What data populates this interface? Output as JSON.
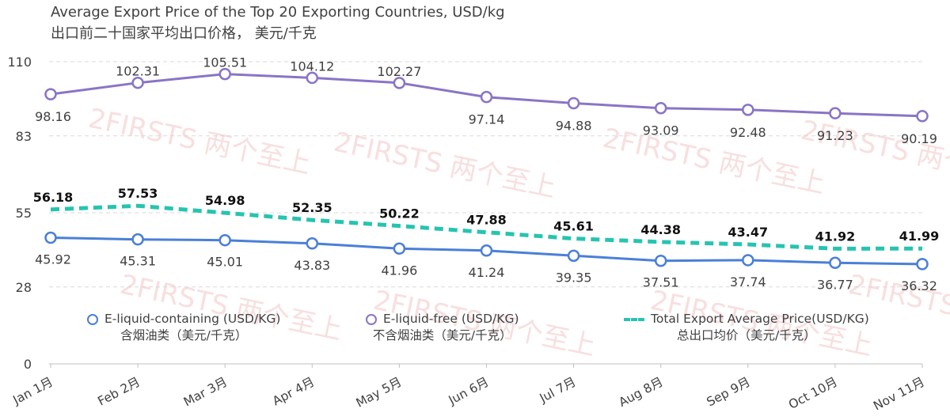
{
  "title": {
    "line1": "Average Export Price of the Top 20 Exporting Countries, USD/kg",
    "line2": "出口前二十国家平均出口价格， 美元/千克"
  },
  "watermark": "2FIRSTS 两个至上",
  "colors": {
    "e_liquid_containing": "#4a7fd9",
    "e_liquid_free": "#8a74c6",
    "total": "#26c4b0",
    "grid": "#d9d9d9",
    "watermark": "#f3c6c6"
  },
  "legend": [
    {
      "label": "E-liquid-containing (USD/KG)",
      "sublabel": "含烟油类（美元/千克）",
      "marker": "circle",
      "color": "#4a7fd9"
    },
    {
      "label": "E-liquid-free (USD/KG)",
      "sublabel": "不含烟油类（美元/千克）",
      "marker": "circle",
      "color": "#8a74c6"
    },
    {
      "label": "Total Export Average Price(USD/KG)",
      "sublabel": "总出口均价（美元/千克）",
      "marker": "dashed-line",
      "color": "#26c4b0"
    }
  ],
  "chart_data": {
    "type": "line",
    "categories": [
      "Jan 1月",
      "Feb 2月",
      "Mar 3月",
      "Apr 4月",
      "May 5月",
      "Jun 6月",
      "Jul 7月",
      "Aug 8月",
      "Sep 9月",
      "Oct 10月",
      "Nov 11月"
    ],
    "y_ticks": [
      0,
      28,
      55,
      83,
      110
    ],
    "ylim": [
      0,
      110
    ],
    "grid": true,
    "legend_position": "bottom",
    "series": [
      {
        "name": "E-liquid-free (USD/KG)",
        "style": "solid-circle",
        "color": "#8a74c6",
        "label_weight": "normal",
        "values": [
          98.16,
          102.31,
          105.51,
          104.12,
          102.27,
          97.14,
          94.88,
          93.09,
          92.48,
          91.23,
          90.19
        ],
        "labels": [
          "98.16",
          "102.31",
          "105.51",
          "104.12",
          "102.27",
          "97.14",
          "94.88",
          "93.09",
          "92.48",
          "91.23",
          "90.19"
        ]
      },
      {
        "name": "Total Export Average Price(USD/KG)",
        "style": "dashed",
        "color": "#26c4b0",
        "label_weight": "bold",
        "values": [
          56.18,
          57.53,
          54.98,
          52.35,
          50.22,
          47.88,
          45.61,
          44.38,
          43.47,
          41.92,
          41.99
        ],
        "labels": [
          "56.18",
          "57.53",
          "54.98",
          "52.35",
          "50.22",
          "47.88",
          "45.61",
          "44.38",
          "43.47",
          "41.92",
          "41.99"
        ]
      },
      {
        "name": "E-liquid-containing (USD/KG)",
        "style": "solid-circle",
        "color": "#4a7fd9",
        "label_weight": "normal",
        "values": [
          45.92,
          45.31,
          45.01,
          43.83,
          41.96,
          41.24,
          39.35,
          37.51,
          37.74,
          36.77,
          36.32
        ],
        "labels": [
          "45.92",
          "45.31",
          "45.01",
          "43.83",
          "41.96",
          "41.24",
          "39.35",
          "37.51",
          "37.74",
          "36.77",
          "36.32"
        ]
      }
    ]
  }
}
